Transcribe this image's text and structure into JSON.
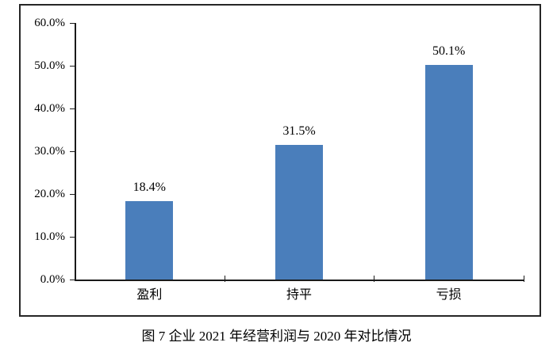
{
  "caption": "图 7 企业 2021 年经营利润与 2020 年对比情况",
  "colors": {
    "bar": "#4a7ebb",
    "axis": "#1a1a1a",
    "border": "#262626",
    "text": "#000000"
  },
  "chart_data": {
    "type": "bar",
    "categories": [
      "盈利",
      "持平",
      "亏损"
    ],
    "values": [
      18.4,
      31.5,
      50.1
    ],
    "value_labels": [
      "18.4%",
      "31.5%",
      "50.1%"
    ],
    "title": "图 7 企业 2021 年经营利润与 2020 年对比情况",
    "xlabel": "",
    "ylabel": "",
    "ylim": [
      0,
      60
    ],
    "ytick_interval": 10,
    "ytick_labels": [
      "0.0%",
      "10.0%",
      "20.0%",
      "30.0%",
      "40.0%",
      "50.0%",
      "60.0%"
    ],
    "grid": false,
    "legend": "none",
    "bar_color": "#4a7ebb"
  }
}
